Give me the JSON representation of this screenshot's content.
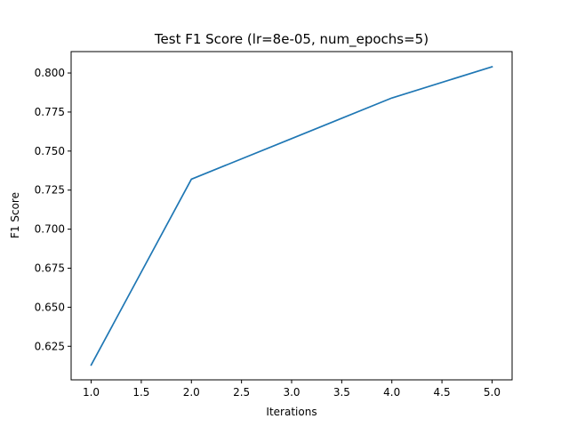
{
  "chart_data": {
    "type": "line",
    "title": "Test F1 Score (lr=8e-05, num_epochs=5)",
    "xlabel": "Iterations",
    "ylabel": "F1 Score",
    "xlim": [
      0.8,
      5.2
    ],
    "ylim": [
      0.6035,
      0.8137
    ],
    "xticks": [
      1.0,
      1.5,
      2.0,
      2.5,
      3.0,
      3.5,
      4.0,
      4.5,
      5.0
    ],
    "xtick_labels": [
      "1.0",
      "1.5",
      "2.0",
      "2.5",
      "3.0",
      "3.5",
      "4.0",
      "4.5",
      "5.0"
    ],
    "yticks": [
      0.625,
      0.65,
      0.675,
      0.7,
      0.725,
      0.75,
      0.775,
      0.8
    ],
    "ytick_labels": [
      "0.625",
      "0.650",
      "0.675",
      "0.700",
      "0.725",
      "0.750",
      "0.775",
      "0.800"
    ],
    "grid": false,
    "series": [
      {
        "color": "#1f77b4",
        "x": [
          1,
          2,
          3,
          4,
          5
        ],
        "y": [
          0.613,
          0.732,
          0.758,
          0.784,
          0.804
        ]
      }
    ]
  }
}
